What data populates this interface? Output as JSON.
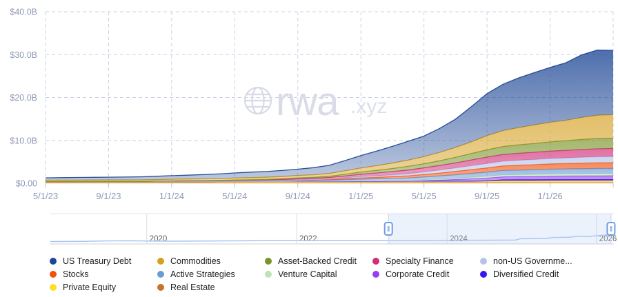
{
  "watermark": {
    "brand": "rwa",
    "suffix": ".xyz"
  },
  "y_axis": {
    "ticks": [
      {
        "value": 0,
        "label": "$0.00"
      },
      {
        "value": 10,
        "label": "$10.0B"
      },
      {
        "value": 20,
        "label": "$20.0B"
      },
      {
        "value": 30,
        "label": "$30.0B"
      },
      {
        "value": 40,
        "label": "$40.0B"
      }
    ],
    "max": 40
  },
  "x_axis": {
    "ticks": [
      {
        "index": 0,
        "label": "5/1/23"
      },
      {
        "index": 4,
        "label": "9/1/23"
      },
      {
        "index": 8,
        "label": "1/1/24"
      },
      {
        "index": 12,
        "label": "5/1/24"
      },
      {
        "index": 16,
        "label": "9/1/24"
      },
      {
        "index": 20,
        "label": "1/1/25"
      },
      {
        "index": 24,
        "label": "5/1/25"
      },
      {
        "index": 28,
        "label": "9/1/25"
      },
      {
        "index": 32,
        "label": "1/1/26"
      },
      {
        "index": 36,
        "label": ""
      }
    ]
  },
  "chart_data": {
    "type": "area",
    "stacked": true,
    "unit": "$B",
    "x_start": "2023-05",
    "x_end": "2026-05",
    "x_step": "month",
    "ylim": [
      0,
      40
    ],
    "grid": "dashed",
    "legend_position": "bottom",
    "series": [
      {
        "name": "Real Estate",
        "color": "#c9702b",
        "values": [
          0.1,
          0.1,
          0.1,
          0.1,
          0.1,
          0.1,
          0.1,
          0.1,
          0.1,
          0.1,
          0.11,
          0.11,
          0.11,
          0.11,
          0.11,
          0.11,
          0.12,
          0.12,
          0.12,
          0.12,
          0.12,
          0.12,
          0.13,
          0.13,
          0.13,
          0.13,
          0.13,
          0.13,
          0.14,
          0.14,
          0.14,
          0.14,
          0.15,
          0.15,
          0.15,
          0.15,
          0.15
        ]
      },
      {
        "name": "Private Equity",
        "color": "#ffdf20",
        "values": [
          0.25,
          0.25,
          0.26,
          0.26,
          0.27,
          0.27,
          0.27,
          0.28,
          0.28,
          0.29,
          0.29,
          0.3,
          0.3,
          0.3,
          0.31,
          0.31,
          0.32,
          0.32,
          0.33,
          0.33,
          0.34,
          0.34,
          0.35,
          0.35,
          0.36,
          0.36,
          0.37,
          0.37,
          0.38,
          0.38,
          0.39,
          0.39,
          0.4,
          0.4,
          0.4,
          0.4,
          0.4
        ]
      },
      {
        "name": "Diversified Credit",
        "color": "#3418ee",
        "values": [
          0,
          0,
          0,
          0,
          0,
          0,
          0,
          0,
          0,
          0,
          0,
          0,
          0,
          0,
          0,
          0,
          0,
          0,
          0,
          0,
          0,
          0,
          0,
          0,
          0,
          0,
          0,
          0,
          0.05,
          0.3,
          0.3,
          0.3,
          0.3,
          0.31,
          0.32,
          0.32,
          0.33
        ]
      },
      {
        "name": "Corporate Credit",
        "color": "#9540f5",
        "values": [
          0,
          0,
          0,
          0,
          0,
          0,
          0,
          0,
          0,
          0,
          0,
          0,
          0,
          0,
          0,
          0,
          0,
          0,
          0,
          0,
          0,
          0,
          0,
          0,
          0.1,
          0.25,
          0.4,
          0.55,
          0.65,
          0.7,
          0.74,
          0.78,
          0.82,
          0.84,
          0.86,
          0.88,
          0.9
        ]
      },
      {
        "name": "Venture Capital",
        "color": "#bce4b8",
        "values": [
          0,
          0,
          0,
          0,
          0,
          0,
          0,
          0,
          0,
          0,
          0,
          0,
          0,
          0,
          0,
          0,
          0.05,
          0.06,
          0.08,
          0.1,
          0.12,
          0.14,
          0.16,
          0.18,
          0.22,
          0.26,
          0.3,
          0.35,
          0.4,
          0.42,
          0.44,
          0.46,
          0.48,
          0.49,
          0.5,
          0.5,
          0.5
        ]
      },
      {
        "name": "Active Strategies",
        "color": "#699bd7",
        "values": [
          0,
          0,
          0,
          0,
          0,
          0,
          0,
          0,
          0,
          0,
          0,
          0,
          0.05,
          0.07,
          0.09,
          0.12,
          0.15,
          0.18,
          0.22,
          0.3,
          0.38,
          0.44,
          0.5,
          0.58,
          0.66,
          0.72,
          0.8,
          0.9,
          0.98,
          1.04,
          1.08,
          1.1,
          1.14,
          1.16,
          1.18,
          1.2,
          1.2
        ]
      },
      {
        "name": "Stocks",
        "color": "#f4510c",
        "values": [
          0.05,
          0.05,
          0.05,
          0.05,
          0.05,
          0.05,
          0.06,
          0.06,
          0.06,
          0.07,
          0.07,
          0.08,
          0.08,
          0.09,
          0.09,
          0.1,
          0.11,
          0.12,
          0.15,
          0.22,
          0.3,
          0.36,
          0.42,
          0.5,
          0.58,
          0.68,
          0.78,
          0.9,
          1.0,
          1.08,
          1.14,
          1.18,
          1.24,
          1.28,
          1.3,
          1.34,
          1.35
        ]
      },
      {
        "name": "non-US Governme...",
        "color": "#b5c3e8",
        "values": [
          0,
          0,
          0,
          0,
          0,
          0,
          0,
          0,
          0,
          0,
          0,
          0,
          0,
          0,
          0,
          0.05,
          0.08,
          0.1,
          0.13,
          0.2,
          0.28,
          0.33,
          0.4,
          0.48,
          0.58,
          0.68,
          0.78,
          0.9,
          1.0,
          1.08,
          1.14,
          1.2,
          1.24,
          1.28,
          1.34,
          1.38,
          1.4
        ]
      },
      {
        "name": "Specialty Finance",
        "color": "#d22d78",
        "values": [
          0,
          0,
          0,
          0,
          0,
          0,
          0,
          0.05,
          0.1,
          0.11,
          0.12,
          0.13,
          0.15,
          0.17,
          0.19,
          0.22,
          0.25,
          0.28,
          0.33,
          0.45,
          0.58,
          0.68,
          0.78,
          0.88,
          0.98,
          1.08,
          1.2,
          1.35,
          1.5,
          1.58,
          1.64,
          1.7,
          1.74,
          1.78,
          1.84,
          1.88,
          1.9
        ]
      },
      {
        "name": "Asset-Backed Credit",
        "color": "#7a9428",
        "values": [
          0,
          0,
          0,
          0,
          0,
          0,
          0,
          0,
          0.02,
          0.03,
          0.04,
          0.05,
          0.08,
          0.1,
          0.12,
          0.15,
          0.18,
          0.22,
          0.28,
          0.38,
          0.5,
          0.6,
          0.72,
          0.85,
          0.95,
          1.1,
          1.3,
          1.5,
          1.7,
          1.85,
          1.95,
          2.05,
          2.15,
          2.25,
          2.35,
          2.4,
          2.4
        ]
      },
      {
        "name": "Commodities",
        "color": "#d5a021",
        "values": [
          0.32,
          0.33,
          0.33,
          0.34,
          0.35,
          0.35,
          0.36,
          0.37,
          0.38,
          0.4,
          0.42,
          0.44,
          0.46,
          0.48,
          0.5,
          0.52,
          0.56,
          0.6,
          0.66,
          0.8,
          0.95,
          1.1,
          1.25,
          1.45,
          1.65,
          1.95,
          2.3,
          2.7,
          3.3,
          3.7,
          4.0,
          4.3,
          4.55,
          4.75,
          5.1,
          5.4,
          5.45
        ]
      },
      {
        "name": "US Treasury Debt",
        "color": "#1d4695",
        "values": [
          0.55,
          0.58,
          0.62,
          0.64,
          0.66,
          0.69,
          0.72,
          0.78,
          0.84,
          0.9,
          0.98,
          1.08,
          1.18,
          1.28,
          1.34,
          1.4,
          1.48,
          1.65,
          1.9,
          2.4,
          2.9,
          3.4,
          3.9,
          4.4,
          4.8,
          5.6,
          6.6,
          8.2,
          9.8,
          10.8,
          11.6,
          12.2,
          12.8,
          13.4,
          14.6,
          15.2,
          15.0
        ]
      }
    ]
  },
  "minimap": {
    "years": [
      {
        "label": "2020",
        "f": 0.171
      },
      {
        "label": "2022",
        "f": 0.437
      },
      {
        "label": "2024",
        "f": 0.704
      },
      {
        "label": "2026",
        "f": 0.969
      }
    ],
    "selection": {
      "start_f": 0.6,
      "end_f": 0.995
    },
    "sparkline": [
      [
        0,
        40.5
      ],
      [
        0.06,
        40.2
      ],
      [
        0.1,
        39.6
      ],
      [
        0.14,
        39.4
      ],
      [
        0.17,
        39.8
      ],
      [
        0.22,
        40.0
      ],
      [
        0.3,
        39.6
      ],
      [
        0.38,
        39.3
      ],
      [
        0.44,
        39.2
      ],
      [
        0.52,
        39.2
      ],
      [
        0.6,
        39.0
      ],
      [
        0.68,
        38.8
      ],
      [
        0.76,
        38.6
      ],
      [
        0.825,
        38.4
      ],
      [
        0.835,
        36.4
      ],
      [
        0.88,
        36.0
      ],
      [
        0.892,
        34.6
      ],
      [
        0.92,
        34.2
      ],
      [
        0.94,
        32.8
      ],
      [
        0.955,
        33.2
      ],
      [
        0.97,
        32.0
      ],
      [
        1.0,
        30.2
      ]
    ]
  },
  "legend": {
    "columns": [
      [
        {
          "label": "US Treasury Debt",
          "color": "#1d4695"
        },
        {
          "label": "Stocks",
          "color": "#f4510c"
        },
        {
          "label": "Private Equity",
          "color": "#ffdf20"
        }
      ],
      [
        {
          "label": "Commodities",
          "color": "#d5a021"
        },
        {
          "label": "Active Strategies",
          "color": "#699bd7"
        },
        {
          "label": "Real Estate",
          "color": "#c9702b"
        }
      ],
      [
        {
          "label": "Asset-Backed Credit",
          "color": "#7a9428"
        },
        {
          "label": "Venture Capital",
          "color": "#bce4b8"
        }
      ],
      [
        {
          "label": "Specialty Finance",
          "color": "#d22d78"
        },
        {
          "label": "Corporate Credit",
          "color": "#9540f5"
        }
      ],
      [
        {
          "label": "non-US Governme...",
          "color": "#b5c3e8"
        },
        {
          "label": "Diversified Credit",
          "color": "#3418ee"
        }
      ]
    ]
  }
}
